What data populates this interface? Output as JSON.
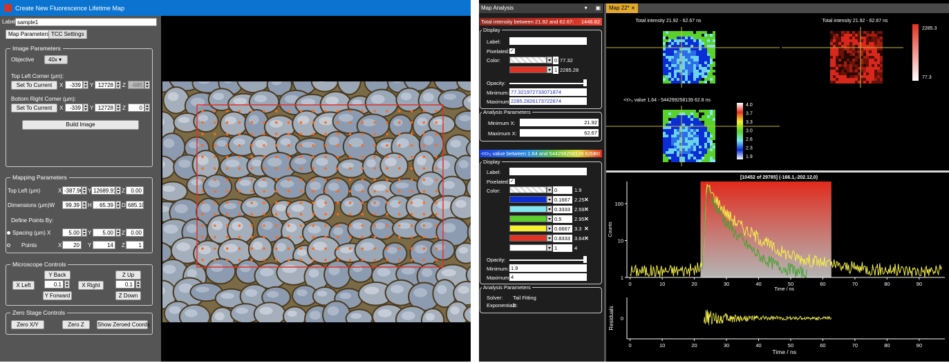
{
  "left_window": {
    "title": "Create New Fluorescence Lifetime Map",
    "label_caption": "Label:",
    "label_value": "sample1",
    "tabs": [
      "Map Parameters",
      "TCC Settings"
    ],
    "image_params": {
      "title": "Image Parameters",
      "objective_label": "Objective",
      "objective_value": "40x",
      "top_left_label": "Top Left Corner (µm):",
      "set_current": "Set To Current",
      "tl": {
        "x": "-339",
        "y": "12728",
        "z": "-685"
      },
      "bottom_right_label": "Bottom Right Corner (µm):",
      "br": {
        "x": "-339",
        "y": "12728",
        "z": "0"
      },
      "build": "Build Image",
      "x": "X",
      "y": "Y",
      "z": "Z"
    },
    "mapping": {
      "title": "Mapping Parameters",
      "top_left_label": "Top Left (µm)",
      "tl": {
        "x": "-387.96",
        "y": "12689.91",
        "z": "0.00"
      },
      "dims_label": "Dimensions (µm)W",
      "dims": {
        "w": "99.39",
        "h": "65.39",
        "d": "685.10"
      },
      "h": "H",
      "d": "D",
      "define_label": "Define Points By:",
      "spacing_label": "Spacing (µm) X",
      "spacing": {
        "x": "5.00",
        "y": "5.00",
        "z": "0.00"
      },
      "points_label": "Points",
      "points": {
        "x": "20",
        "y": "14",
        "z": "1"
      }
    },
    "micro": {
      "title": "Microscope Controls",
      "y_back": "Y Back",
      "y_forward": "Y Forward",
      "x_left": "X Left",
      "x_right": "X Right",
      "step_xy": "0.1",
      "z_up": "Z Up",
      "z_down": "Z Down",
      "step_z": "0.1"
    },
    "zero": {
      "title": "Zero Stage Controls",
      "zxy": "Zero X/Y",
      "zz": "Zero Z",
      "show": "Show Zeroed Coords"
    }
  },
  "right_window": {
    "panel_title": "Map Analysis",
    "panel_btns": "▾       ▣",
    "map_tab": "Map 22*",
    "map_tab_close": "✕",
    "intensity_header": {
      "text": "Total intensity between 21.92 and 62.67:",
      "value": "1446.82"
    },
    "display1": {
      "title": "Display",
      "label": "Label:",
      "pixelated": "Pixelated:",
      "color": "Color:",
      "c1": "0",
      "c1v": "77.32",
      "c2": "1",
      "c2v": "2285.28",
      "opacity": "Opacity:",
      "min_label": "Minimum:",
      "min": "77.321972733071874",
      "max_label": "Maximum:",
      "max": "2285.2826173722674"
    },
    "analysis1": {
      "title": "Analysis Parameters",
      "minx_label": "Minimum X:",
      "minx": "21.92",
      "maxx_label": "Maximum X:",
      "maxx": "62.67"
    },
    "tau_header": {
      "text": "<τ>₂ value between 1.64 and 544299258139 62.8",
      "value": "1.90"
    },
    "display2": {
      "title": "Display",
      "label": "Label:",
      "pixelated": "Pixelated:",
      "color": "Color:",
      "stops": [
        {
          "p": "0",
          "v": "1.9",
          "c": "#ffffff",
          "x": ""
        },
        {
          "p": "0.1667",
          "v": "2.25",
          "c": "#0a2dd6",
          "x": "✕"
        },
        {
          "p": "0.3333",
          "v": "2.59",
          "c": "#7fe6f2",
          "x": "✕"
        },
        {
          "p": "0.5",
          "v": "2.95",
          "c": "#5ad12a",
          "x": "✕"
        },
        {
          "p": "0.6667",
          "v": "3.3",
          "c": "#f7f02c",
          "x": "✕"
        },
        {
          "p": "0.8333",
          "v": "3.64",
          "c": "#e23224",
          "x": "✕"
        },
        {
          "p": "1",
          "v": "4",
          "c": "#ffffff",
          "x": ""
        }
      ],
      "opacity": "Opacity:",
      "min_label": "Minimum:",
      "min": "1.9",
      "max_label": "Maximum:",
      "max": "4"
    },
    "analysis2": {
      "title": "Analysis Parameters",
      "solver_label": "Solver:",
      "solver": "Tail Fitting",
      "exp_label": "Exponentials:",
      "exp": "2"
    },
    "maps": {
      "t1": "Total intensity  21.92 - 62.67 ns",
      "t2": "Total intensity  21.92 - 62.67 ns",
      "t3": "<τ>₂ value  1.64 - 544299258139 62.8 ns",
      "cb1": [
        "2285.3",
        "77.3"
      ],
      "cb2": [
        "4.0",
        "3.7",
        "3.3",
        "3.0",
        "2.6",
        "2.3",
        "1.9"
      ]
    },
    "decay": {
      "title": "[10452 of 29785] (-166.1,-202.12,0)"
    }
  },
  "chart_data": [
    {
      "type": "line",
      "title": "[10452 of 29785] (-166.1,-202.12,0)",
      "xlabel": "Time / ns",
      "ylabel": "Counts",
      "yscale": "log",
      "xlim": [
        -1,
        98
      ],
      "ylim": [
        1,
        400
      ],
      "yticks": [
        1,
        10,
        100
      ],
      "xticks": [
        0,
        10,
        20,
        30,
        40,
        50,
        60,
        70,
        80,
        90
      ],
      "highlight_range": [
        21.92,
        62.67
      ],
      "series": [
        {
          "color": "#f4f04a",
          "x": [
            0,
            10,
            20,
            22.5,
            23.5,
            24,
            25,
            26,
            28,
            30,
            33,
            36,
            40,
            45,
            50,
            55,
            60,
            65,
            70,
            80,
            90,
            97
          ],
          "y": [
            1.5,
            1.5,
            1.6,
            2,
            100,
            300,
            220,
            160,
            95,
            55,
            32,
            20,
            12,
            6,
            4,
            3,
            2.5,
            2,
            1.8,
            1.6,
            1.5,
            1.5
          ]
        },
        {
          "color": "#45a22e",
          "x": [
            22.5,
            23.5,
            24,
            25,
            26,
            28,
            30,
            33,
            36,
            40,
            45,
            50,
            55
          ],
          "y": [
            2,
            100,
            260,
            160,
            100,
            55,
            30,
            15,
            8,
            4,
            2.2,
            1.6,
            1.2
          ]
        }
      ]
    },
    {
      "type": "line",
      "xlabel": "Time / ns",
      "ylabel": "Residuals",
      "xlim": [
        -1,
        98
      ],
      "ylim": [
        -1,
        1
      ],
      "yticks": [
        0
      ],
      "xticks": [
        0,
        10,
        20,
        30,
        40,
        50,
        60,
        70,
        80,
        90
      ],
      "series": [
        {
          "color": "#f4f04a",
          "x": [
            23,
            30,
            40,
            50,
            62.6
          ],
          "y": [
            0,
            0,
            0,
            0,
            0
          ]
        }
      ]
    }
  ]
}
